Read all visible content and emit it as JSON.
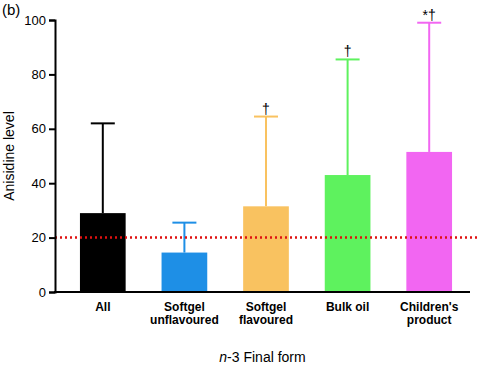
{
  "chart_data": {
    "type": "bar",
    "panel_label": "(b)",
    "y_label": "Anisidine level",
    "x_label": "n-3 Final form",
    "categories": [
      "All",
      "Softgel\nunflavoured",
      "Softgel\nflavoured",
      "Bulk oil",
      "Children's\nproduct"
    ],
    "values": [
      29,
      14.5,
      31.5,
      43,
      51.5
    ],
    "errors": [
      33,
      11,
      33,
      42.5,
      47.5
    ],
    "colors": [
      "#000000",
      "#1e8fe6",
      "#f9c260",
      "#5ef25e",
      "#f266f2"
    ],
    "annotations": [
      null,
      null,
      "†",
      "†",
      "*†"
    ],
    "reference_line": {
      "value": 20,
      "color": "#e01010",
      "line_style": "dotted"
    },
    "ylim": [
      0,
      100
    ],
    "yticks": [
      0,
      20,
      40,
      60,
      80,
      100
    ],
    "grid": false
  }
}
